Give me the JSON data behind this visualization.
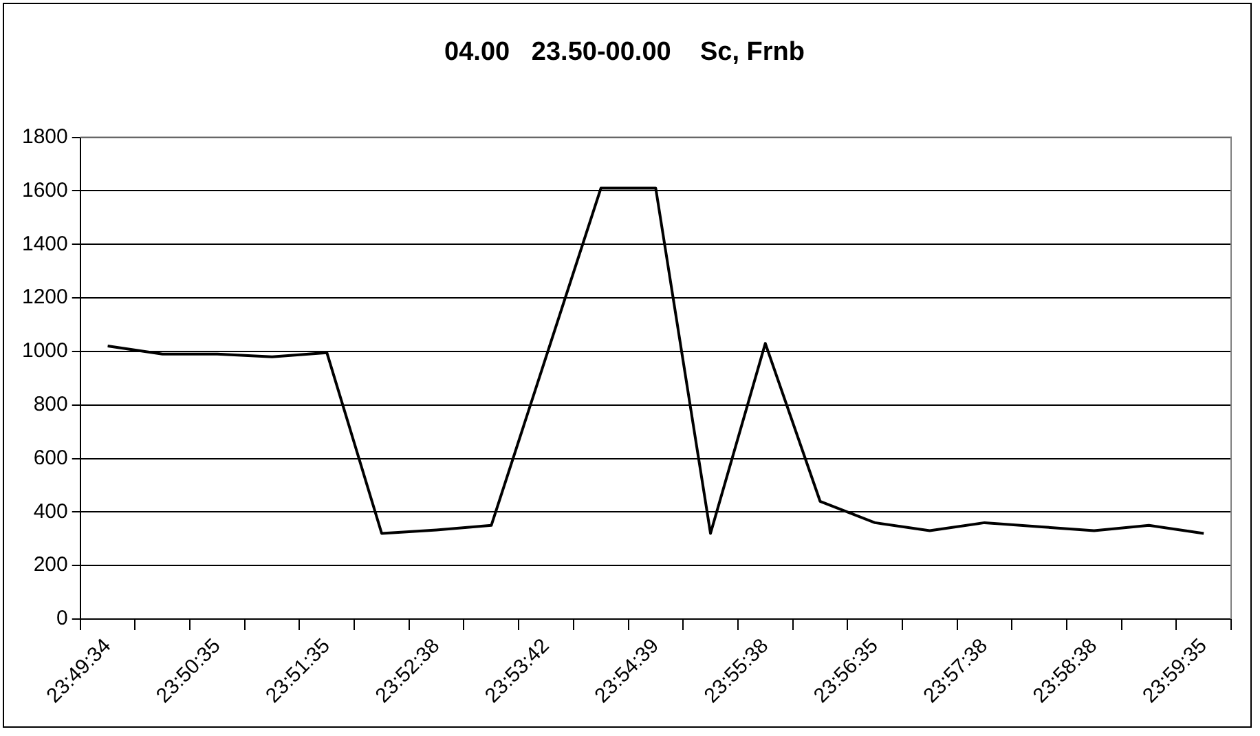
{
  "chart_data": {
    "type": "line",
    "title": "04.00   23.50-00.00    Sc, Frnb",
    "categories": [
      "23:49:34",
      null,
      "23:50:35",
      null,
      "23:51:35",
      null,
      "23:52:38",
      null,
      "23:53:42",
      null,
      "23:54:39",
      null,
      "23:55:38",
      null,
      "23:56:35",
      null,
      "23:57:38",
      null,
      "23:58:38",
      null,
      "23:59:35"
    ],
    "series": [
      {
        "color": "#000000",
        "values": [
          1020,
          990,
          990,
          980,
          995,
          320,
          333,
          350,
          980,
          1610,
          1610,
          320,
          1030,
          440,
          360,
          330,
          360,
          345,
          330,
          350,
          320
        ]
      }
    ],
    "ylim": [
      0,
      1800
    ],
    "yticks": [
      0,
      200,
      400,
      600,
      800,
      1000,
      1200,
      1400,
      1600,
      1800
    ],
    "grid": "y",
    "legend": false,
    "marker": "none",
    "line_style": "solid"
  }
}
